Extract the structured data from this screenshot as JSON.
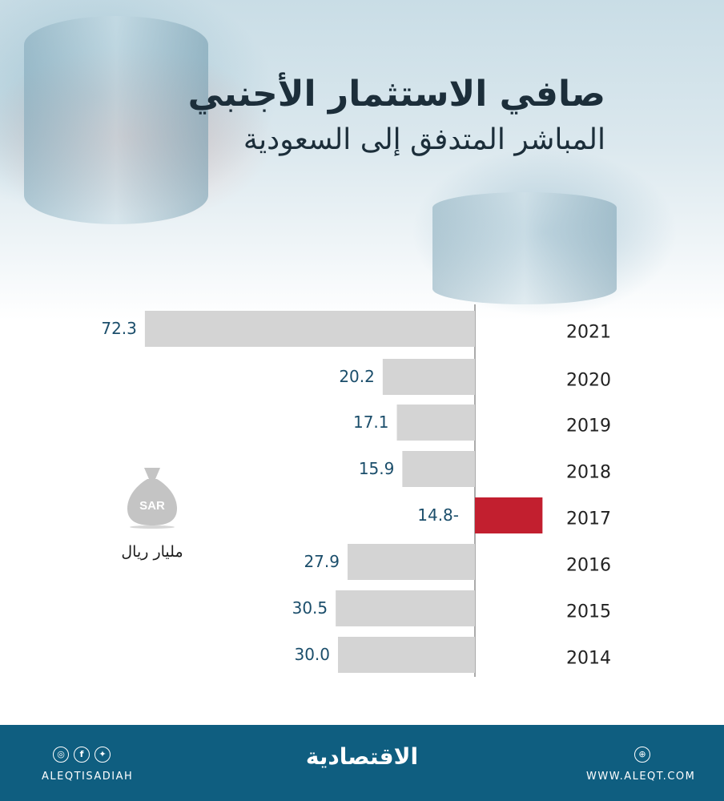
{
  "title": {
    "line1": "صافي الاستثمار الأجنبي",
    "line2": "المباشر المتدفق إلى السعودية"
  },
  "legend": {
    "icon": "money-bag-icon",
    "icon_text": "SAR",
    "unit": "مليار ريال"
  },
  "colors": {
    "positive_bar": "#d4d4d4",
    "negative_bar": "#c21f2f",
    "value_text": "#1b4e6b",
    "year_text": "#222222",
    "footer": "#0f5e80"
  },
  "chart_data": {
    "type": "bar",
    "orientation": "horizontal",
    "categories": [
      "2021",
      "2020",
      "2019",
      "2018",
      "2017",
      "2016",
      "2015",
      "2014"
    ],
    "values": [
      72.3,
      20.2,
      17.1,
      15.9,
      -14.8,
      27.9,
      30.5,
      30.0
    ],
    "value_labels": [
      "72.3",
      "20.2",
      "17.1",
      "15.9",
      "14.8-",
      "27.9",
      "30.5",
      "30.0"
    ],
    "title": "صافي الاستثمار الأجنبي المباشر المتدفق إلى السعودية",
    "unit": "مليار ريال",
    "grid": false
  },
  "footer": {
    "social_icons": [
      "instagram-icon",
      "facebook-icon",
      "twitter-icon"
    ],
    "handle": "ALEQTISADIAH",
    "brand": "الاقتصادية",
    "web_icon": "globe-icon",
    "website": "WWW.ALEQT.COM"
  }
}
